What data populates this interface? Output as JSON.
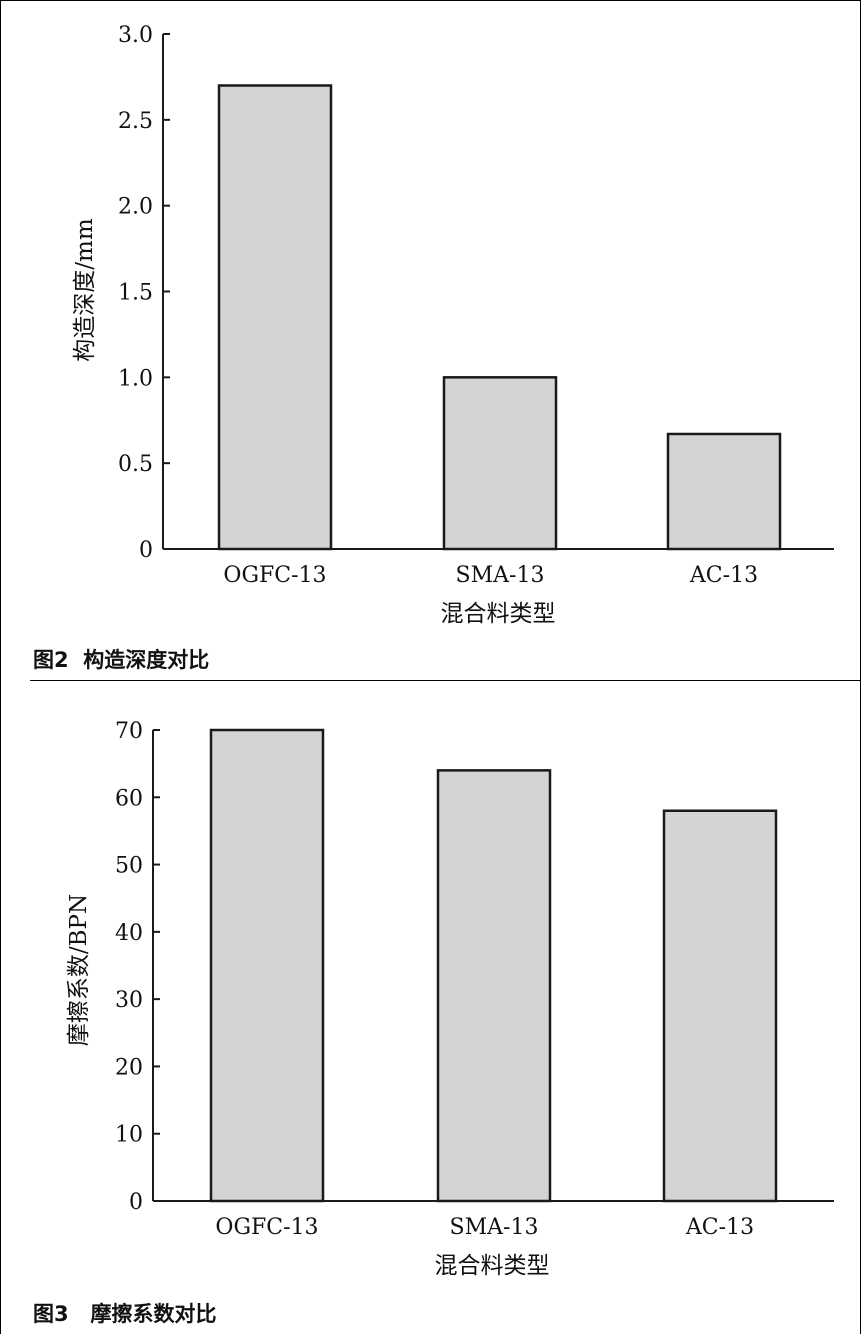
{
  "figures": [
    {
      "caption": "图2  构造深度对比"
    },
    {
      "caption": "图3   摩擦系数对比"
    }
  ],
  "chart_data": [
    {
      "type": "bar",
      "categories": [
        "OGFC-13",
        "SMA-13",
        "AC-13"
      ],
      "values": [
        2.7,
        1.0,
        0.67
      ],
      "title": "",
      "xlabel": "混合料类型",
      "ylabel": "构造深度/mm",
      "ylim": [
        0,
        3.0
      ],
      "yticks": [
        0,
        0.5,
        1.0,
        1.5,
        2.0,
        2.5,
        3.0
      ],
      "ytick_labels": [
        "0",
        "0.5",
        "1.0",
        "1.5",
        "2.0",
        "2.5",
        "3.0"
      ],
      "grid": false,
      "bar_color": "#d4d4d4",
      "edge_color": "#1a1a1a"
    },
    {
      "type": "bar",
      "categories": [
        "OGFC-13",
        "SMA-13",
        "AC-13"
      ],
      "values": [
        70,
        64,
        58
      ],
      "title": "",
      "xlabel": "混合料类型",
      "ylabel": "摩擦系数/BPN",
      "ylim": [
        0,
        70
      ],
      "yticks": [
        0,
        10,
        20,
        30,
        40,
        50,
        60,
        70
      ],
      "ytick_labels": [
        "0",
        "10",
        "20",
        "30",
        "40",
        "50",
        "60",
        "70"
      ],
      "grid": false,
      "bar_color": "#d4d4d4",
      "edge_color": "#1a1a1a"
    }
  ]
}
